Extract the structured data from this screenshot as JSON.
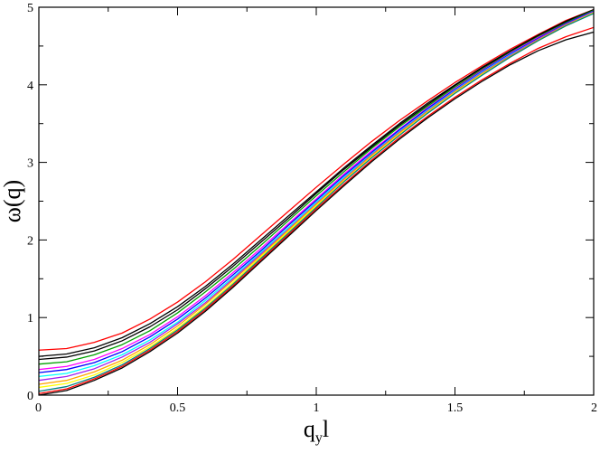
{
  "chart_data": {
    "type": "line",
    "title": "",
    "xlabel": "q",
    "xlabel_subscript": "y",
    "xlabel_suffix": "l",
    "ylabel": "ω(q)",
    "xlim": [
      0,
      2
    ],
    "ylim": [
      0,
      5
    ],
    "xticks": [
      "0",
      "0.5",
      "1",
      "1.5",
      "2"
    ],
    "yticks": [
      "0",
      "1",
      "2",
      "3",
      "4",
      "5"
    ],
    "xtick_values": [
      0,
      0.5,
      1,
      1.5,
      2
    ],
    "ytick_values": [
      0,
      1,
      2,
      3,
      4,
      5
    ],
    "grid": false,
    "legend": "none",
    "x": [
      0,
      0.1,
      0.2,
      0.3,
      0.4,
      0.5,
      0.6,
      0.7,
      0.8,
      0.9,
      1.0,
      1.1,
      1.2,
      1.3,
      1.4,
      1.5,
      1.6,
      1.7,
      1.8,
      1.9,
      2.0
    ],
    "series": [
      {
        "color": "#ff0000",
        "values": [
          0.58,
          0.6,
          0.68,
          0.8,
          0.98,
          1.2,
          1.46,
          1.75,
          2.06,
          2.37,
          2.68,
          2.98,
          3.27,
          3.54,
          3.79,
          4.03,
          4.25,
          4.46,
          4.65,
          4.83,
          4.97
        ]
      },
      {
        "color": "#000000",
        "values": [
          0.5,
          0.53,
          0.61,
          0.74,
          0.92,
          1.14,
          1.4,
          1.69,
          2.0,
          2.31,
          2.62,
          2.93,
          3.22,
          3.5,
          3.76,
          4.0,
          4.23,
          4.44,
          4.64,
          4.82,
          4.97
        ]
      },
      {
        "color": "#000000",
        "values": [
          0.46,
          0.49,
          0.57,
          0.7,
          0.88,
          1.1,
          1.37,
          1.66,
          1.97,
          2.28,
          2.6,
          2.91,
          3.2,
          3.48,
          3.74,
          3.99,
          4.22,
          4.43,
          4.63,
          4.81,
          4.96
        ]
      },
      {
        "color": "#00a000",
        "values": [
          0.4,
          0.43,
          0.52,
          0.65,
          0.83,
          1.06,
          1.33,
          1.62,
          1.93,
          2.25,
          2.57,
          2.88,
          3.18,
          3.46,
          3.72,
          3.97,
          4.2,
          4.42,
          4.62,
          4.8,
          4.96
        ]
      },
      {
        "color": "#ff00ff",
        "values": [
          0.33,
          0.37,
          0.46,
          0.6,
          0.78,
          1.01,
          1.28,
          1.58,
          1.89,
          2.21,
          2.53,
          2.85,
          3.15,
          3.43,
          3.7,
          3.95,
          4.19,
          4.41,
          4.61,
          4.79,
          4.95
        ]
      },
      {
        "color": "#0000ff",
        "values": [
          0.29,
          0.33,
          0.42,
          0.56,
          0.75,
          0.98,
          1.25,
          1.55,
          1.86,
          2.19,
          2.51,
          2.83,
          3.13,
          3.42,
          3.69,
          3.94,
          4.18,
          4.4,
          4.6,
          4.79,
          4.95
        ]
      },
      {
        "color": "#00ffff",
        "values": [
          0.24,
          0.28,
          0.38,
          0.52,
          0.71,
          0.94,
          1.22,
          1.52,
          1.84,
          2.16,
          2.49,
          2.81,
          3.11,
          3.4,
          3.67,
          3.93,
          4.17,
          4.39,
          4.59,
          4.78,
          4.94
        ]
      },
      {
        "color": "#a020f0",
        "values": [
          0.19,
          0.24,
          0.34,
          0.49,
          0.68,
          0.92,
          1.19,
          1.5,
          1.82,
          2.14,
          2.47,
          2.79,
          3.1,
          3.39,
          3.66,
          3.92,
          4.16,
          4.38,
          4.59,
          4.78,
          4.94
        ]
      },
      {
        "color": "#ffa500",
        "values": [
          0.14,
          0.19,
          0.3,
          0.45,
          0.65,
          0.89,
          1.17,
          1.48,
          1.8,
          2.13,
          2.46,
          2.78,
          3.09,
          3.38,
          3.65,
          3.91,
          4.15,
          4.37,
          4.58,
          4.77,
          4.93
        ]
      },
      {
        "color": "#ffff00",
        "values": [
          0.1,
          0.15,
          0.26,
          0.42,
          0.62,
          0.86,
          1.14,
          1.45,
          1.78,
          2.11,
          2.44,
          2.76,
          3.07,
          3.36,
          3.64,
          3.9,
          4.14,
          4.36,
          4.57,
          4.76,
          4.93
        ]
      },
      {
        "color": "#008080",
        "values": [
          0.05,
          0.11,
          0.23,
          0.39,
          0.6,
          0.84,
          1.12,
          1.43,
          1.76,
          2.09,
          2.42,
          2.75,
          3.06,
          3.35,
          3.63,
          3.89,
          4.13,
          4.36,
          4.57,
          4.76,
          4.92
        ]
      },
      {
        "color": "#ff0000",
        "values": [
          0.02,
          0.08,
          0.21,
          0.37,
          0.58,
          0.82,
          1.1,
          1.41,
          1.74,
          2.07,
          2.4,
          2.72,
          3.03,
          3.32,
          3.59,
          3.84,
          4.07,
          4.28,
          4.47,
          4.62,
          4.74
        ]
      },
      {
        "color": "#000000",
        "values": [
          0.0,
          0.06,
          0.19,
          0.35,
          0.56,
          0.8,
          1.08,
          1.39,
          1.72,
          2.05,
          2.38,
          2.7,
          3.01,
          3.3,
          3.57,
          3.82,
          4.05,
          4.26,
          4.44,
          4.58,
          4.68
        ]
      }
    ]
  }
}
